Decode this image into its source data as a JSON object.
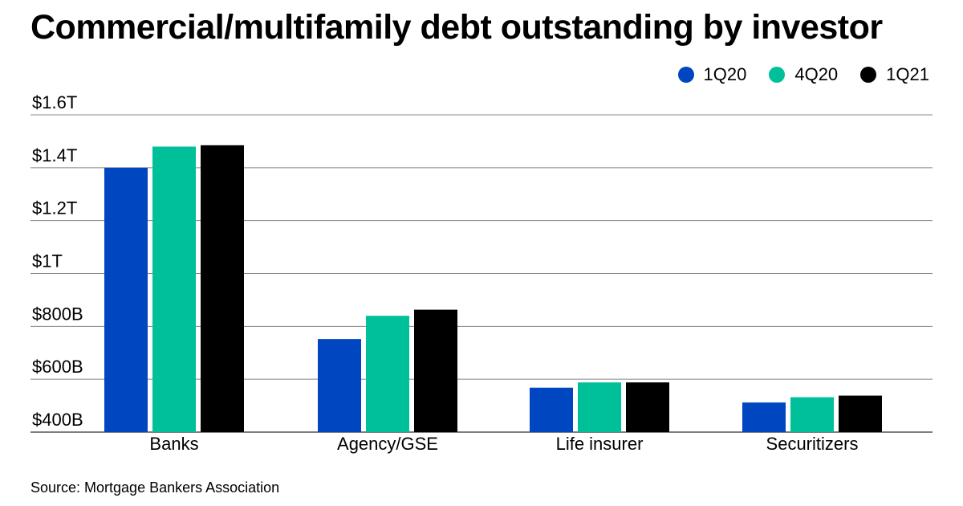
{
  "title": "Commercial/multifamily debt outstanding by investor",
  "source": "Source: Mortgage Bankers Association",
  "legend": [
    {
      "label": "1Q20",
      "color": "#0046c0"
    },
    {
      "label": "4Q20",
      "color": "#00c09a"
    },
    {
      "label": "1Q21",
      "color": "#000000"
    }
  ],
  "chart_data": {
    "type": "bar",
    "title": "Commercial/multifamily debt outstanding by investor",
    "xlabel": "",
    "ylabel": "",
    "categories": [
      "Banks",
      "Agency/GSE",
      "Life insurer",
      "Securitizers"
    ],
    "series": [
      {
        "name": "1Q20",
        "color": "#0046c0",
        "values": [
          1400,
          752,
          568,
          512
        ]
      },
      {
        "name": "4Q20",
        "color": "#00c09a",
        "values": [
          1480,
          840,
          588,
          532
        ]
      },
      {
        "name": "1Q21",
        "color": "#000000",
        "values": [
          1485,
          863,
          588,
          538
        ]
      }
    ],
    "ylim": [
      400,
      1600
    ],
    "yticks": [
      400,
      600,
      800,
      1000,
      1200,
      1400,
      1600
    ],
    "ytick_labels": [
      "$400B",
      "$600B",
      "$800B",
      "$1T",
      "$1.2T",
      "$1.4T",
      "$1.6T"
    ],
    "grid": true,
    "legend_position": "top-right"
  }
}
